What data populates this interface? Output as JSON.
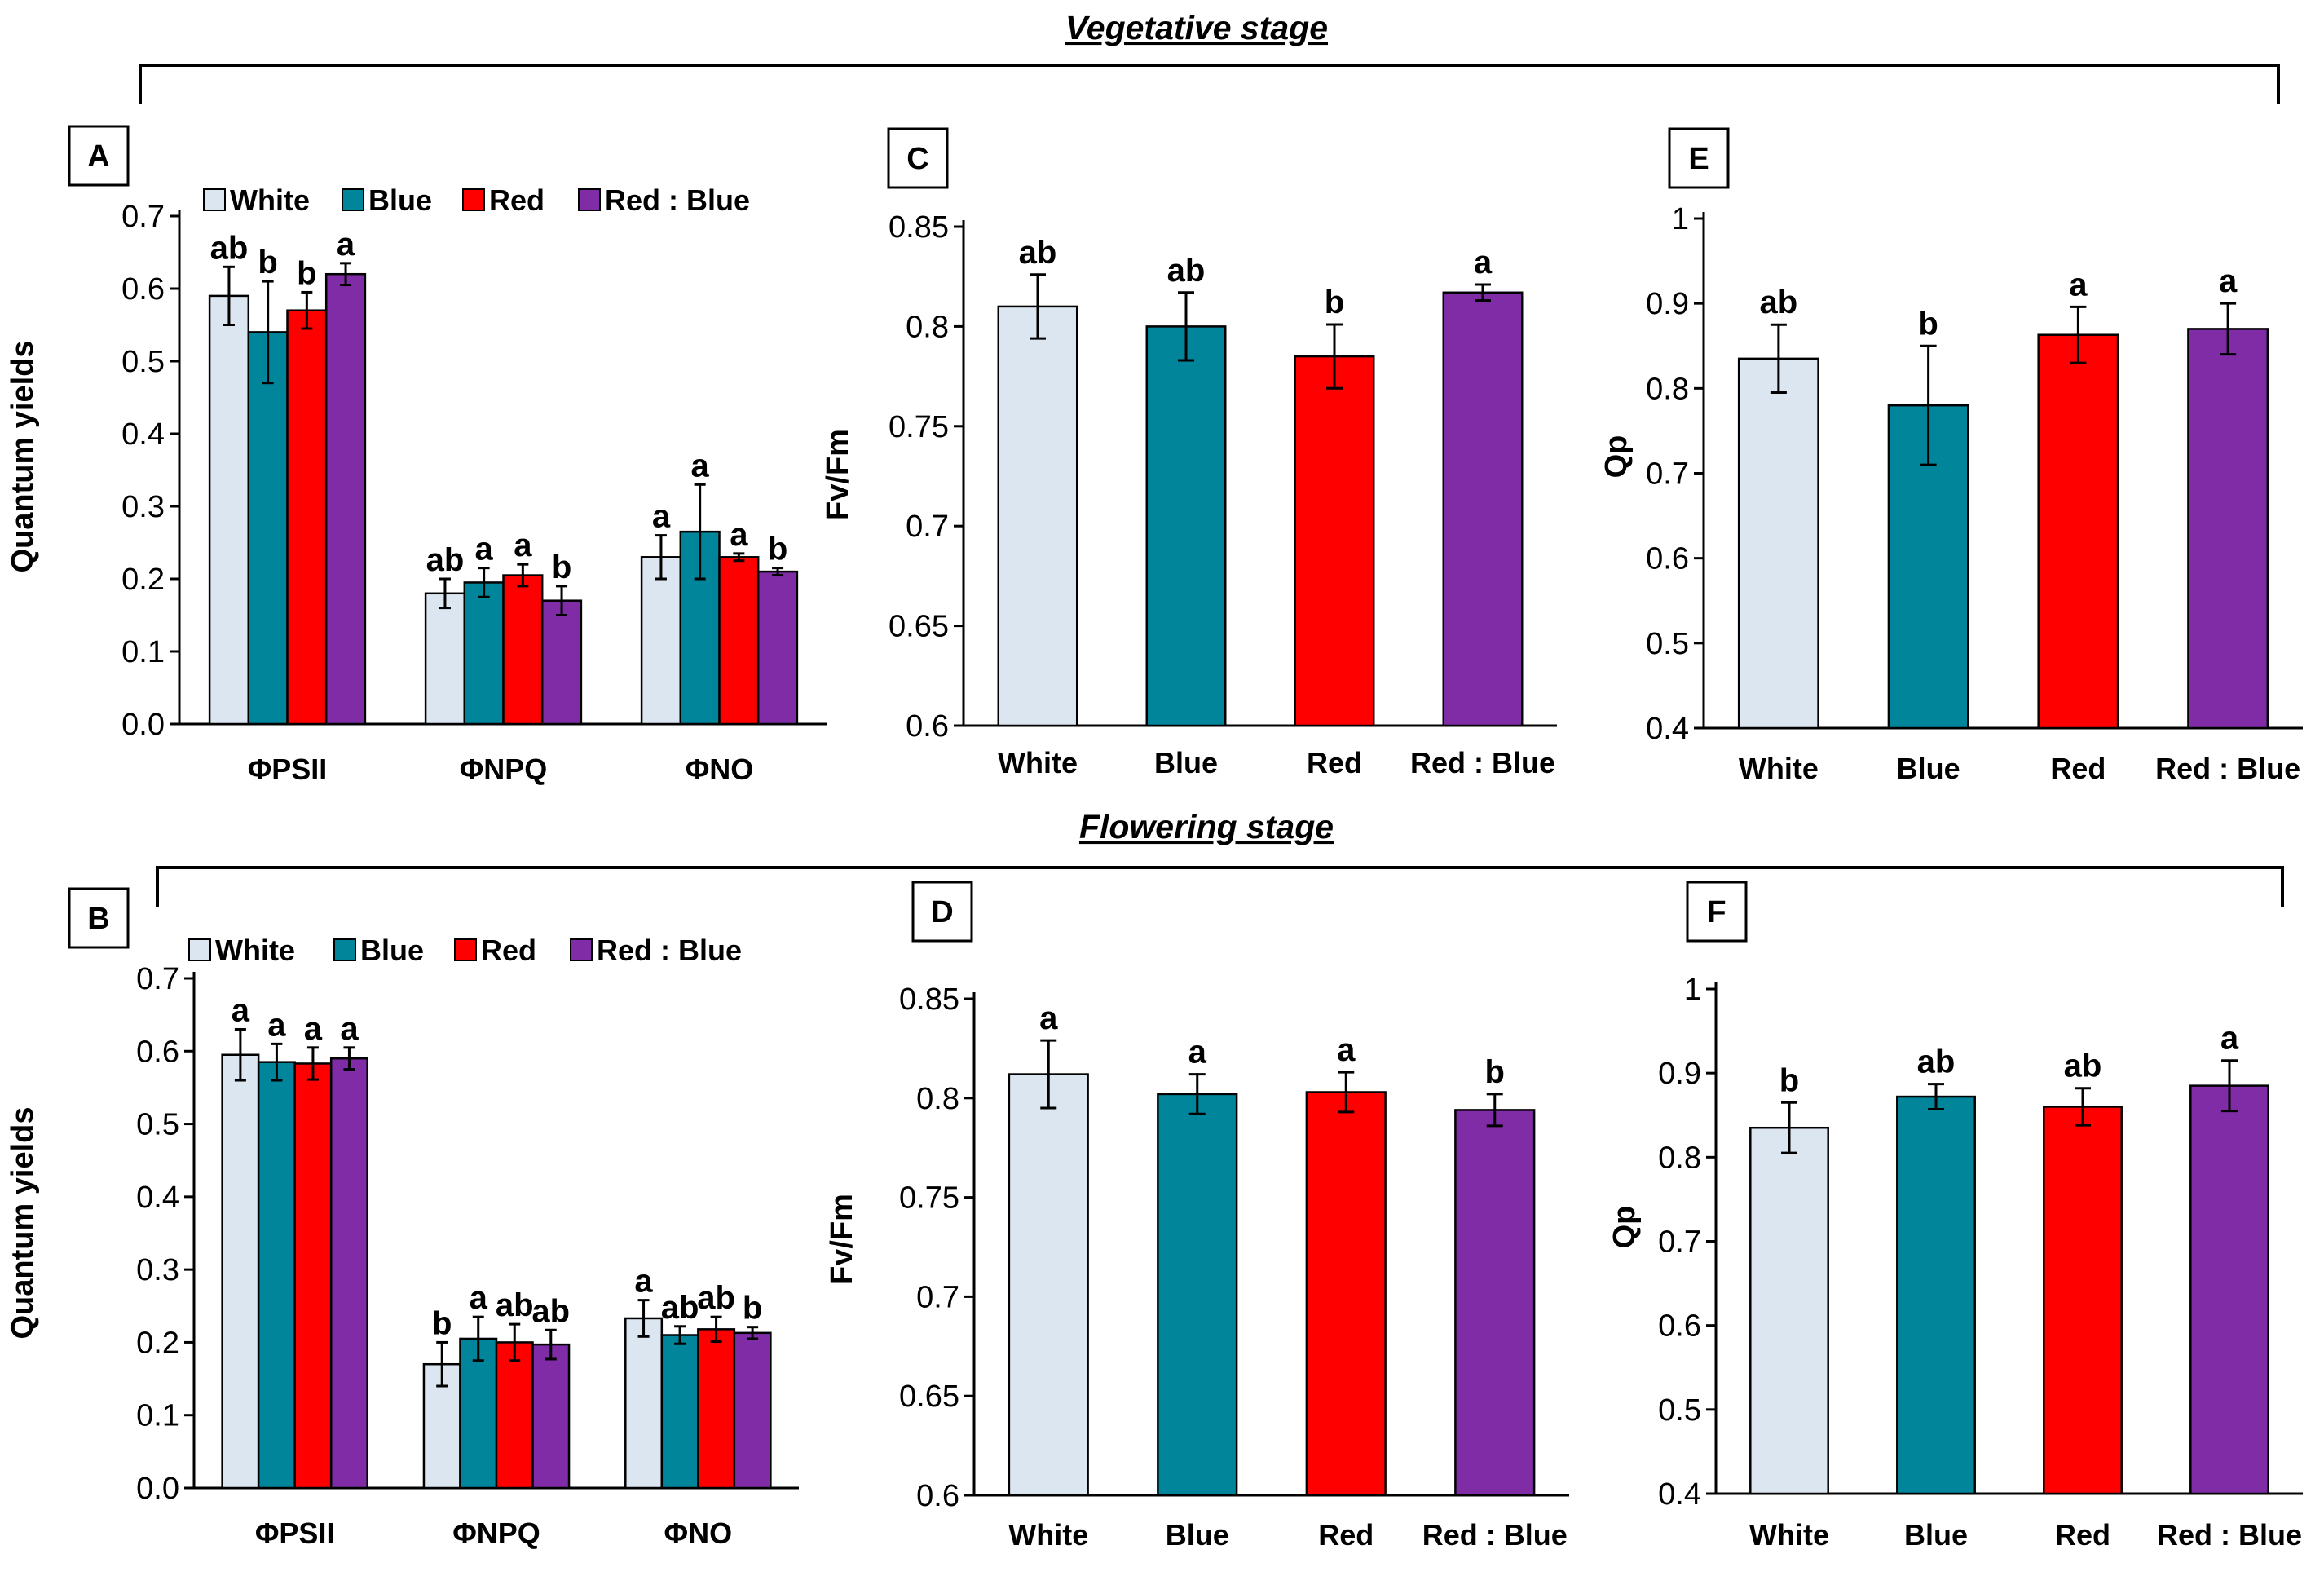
{
  "stages": {
    "vegetative": "Vegetative stage",
    "flowering": "Flowering stage"
  },
  "legend": [
    "White",
    "Blue",
    "Red",
    "Red : Blue"
  ],
  "colors": {
    "White": "#dce6f1",
    "Blue": "#00859b",
    "Red": "#ff0000",
    "Red : Blue": "#7f2ca6"
  },
  "chart_data": [
    {
      "panel": "A",
      "type": "bar",
      "stage": "Vegetative stage",
      "ylabel": "Quantum yields",
      "xlabel": "",
      "ylim": [
        0.0,
        0.7
      ],
      "yticks": [
        "0.0",
        "0.1",
        "0.2",
        "0.3",
        "0.4",
        "0.5",
        "0.6",
        "0.7"
      ],
      "categories": [
        "ΦPSII",
        "ΦNPQ",
        "ΦNO"
      ],
      "legend_position": "top",
      "series": [
        {
          "name": "White",
          "values": [
            0.59,
            0.18,
            0.23
          ],
          "errors": [
            0.04,
            0.02,
            0.03
          ],
          "letters": [
            "ab",
            "ab",
            "a"
          ]
        },
        {
          "name": "Blue",
          "values": [
            0.54,
            0.195,
            0.265
          ],
          "errors": [
            0.07,
            0.02,
            0.065
          ],
          "letters": [
            "b",
            "a",
            "a"
          ]
        },
        {
          "name": "Red",
          "values": [
            0.57,
            0.205,
            0.23
          ],
          "errors": [
            0.025,
            0.015,
            0.005
          ],
          "letters": [
            "b",
            "a",
            "a"
          ]
        },
        {
          "name": "Red : Blue",
          "values": [
            0.62,
            0.17,
            0.21
          ],
          "errors": [
            0.015,
            0.02,
            0.005
          ],
          "letters": [
            "a",
            "b",
            "b"
          ]
        }
      ]
    },
    {
      "panel": "B",
      "type": "bar",
      "stage": "Flowering stage",
      "ylabel": "Quantum yields",
      "xlabel": "",
      "ylim": [
        0.0,
        0.7
      ],
      "yticks": [
        "0.0",
        "0.1",
        "0.2",
        "0.3",
        "0.4",
        "0.5",
        "0.6",
        "0.7"
      ],
      "categories": [
        "ΦPSII",
        "ΦNPQ",
        "ΦNO"
      ],
      "legend_position": "top",
      "series": [
        {
          "name": "White",
          "values": [
            0.595,
            0.17,
            0.233
          ],
          "errors": [
            0.035,
            0.03,
            0.025
          ],
          "letters": [
            "a",
            "b",
            "a"
          ]
        },
        {
          "name": "Blue",
          "values": [
            0.585,
            0.205,
            0.21
          ],
          "errors": [
            0.025,
            0.03,
            0.012
          ],
          "letters": [
            "a",
            "a",
            "ab"
          ]
        },
        {
          "name": "Red",
          "values": [
            0.583,
            0.2,
            0.218
          ],
          "errors": [
            0.022,
            0.025,
            0.017
          ],
          "letters": [
            "a",
            "ab",
            "ab"
          ]
        },
        {
          "name": "Red : Blue",
          "values": [
            0.59,
            0.197,
            0.213
          ],
          "errors": [
            0.015,
            0.02,
            0.008
          ],
          "letters": [
            "a",
            "ab",
            "b"
          ]
        }
      ]
    },
    {
      "panel": "C",
      "type": "bar",
      "stage": "Vegetative stage",
      "ylabel": "Fv/Fm",
      "xlabel": "",
      "ylim": [
        0.6,
        0.85
      ],
      "yticks": [
        "0.6",
        "0.65",
        "0.7",
        "0.75",
        "0.8",
        "0.85"
      ],
      "categories": [
        "White",
        "Blue",
        "Red",
        "Red : Blue"
      ],
      "values": [
        0.81,
        0.8,
        0.785,
        0.817
      ],
      "errors": [
        0.016,
        0.017,
        0.016,
        0.004
      ],
      "letters": [
        "ab",
        "ab",
        "b",
        "a"
      ]
    },
    {
      "panel": "D",
      "type": "bar",
      "stage": "Flowering stage",
      "ylabel": "Fv/Fm",
      "xlabel": "",
      "ylim": [
        0.6,
        0.85
      ],
      "yticks": [
        "0.6",
        "0.65",
        "0.7",
        "0.75",
        "0.8",
        "0.85"
      ],
      "categories": [
        "White",
        "Blue",
        "Red",
        "Red : Blue"
      ],
      "values": [
        0.812,
        0.802,
        0.803,
        0.794
      ],
      "errors": [
        0.017,
        0.01,
        0.01,
        0.008
      ],
      "letters": [
        "a",
        "a",
        "a",
        "b"
      ]
    },
    {
      "panel": "E",
      "type": "bar",
      "stage": "Vegetative stage",
      "ylabel": "Qp",
      "xlabel": "",
      "ylim": [
        0.4,
        1.0
      ],
      "yticks": [
        "0.4",
        "0.5",
        "0.6",
        "0.7",
        "0.8",
        "0.9",
        "1"
      ],
      "categories": [
        "White",
        "Blue",
        "Red",
        "Red : Blue"
      ],
      "values": [
        0.835,
        0.78,
        0.863,
        0.87
      ],
      "errors": [
        0.04,
        0.07,
        0.033,
        0.03
      ],
      "letters": [
        "ab",
        "b",
        "a",
        "a"
      ]
    },
    {
      "panel": "F",
      "type": "bar",
      "stage": "Flowering stage",
      "ylabel": "Qp",
      "xlabel": "",
      "ylim": [
        0.4,
        1.0
      ],
      "yticks": [
        "0.4",
        "0.5",
        "0.6",
        "0.7",
        "0.8",
        "0.9",
        "1"
      ],
      "categories": [
        "White",
        "Blue",
        "Red",
        "Red : Blue"
      ],
      "values": [
        0.835,
        0.872,
        0.86,
        0.885
      ],
      "errors": [
        0.03,
        0.015,
        0.022,
        0.03
      ],
      "letters": [
        "b",
        "ab",
        "ab",
        "a"
      ]
    }
  ]
}
